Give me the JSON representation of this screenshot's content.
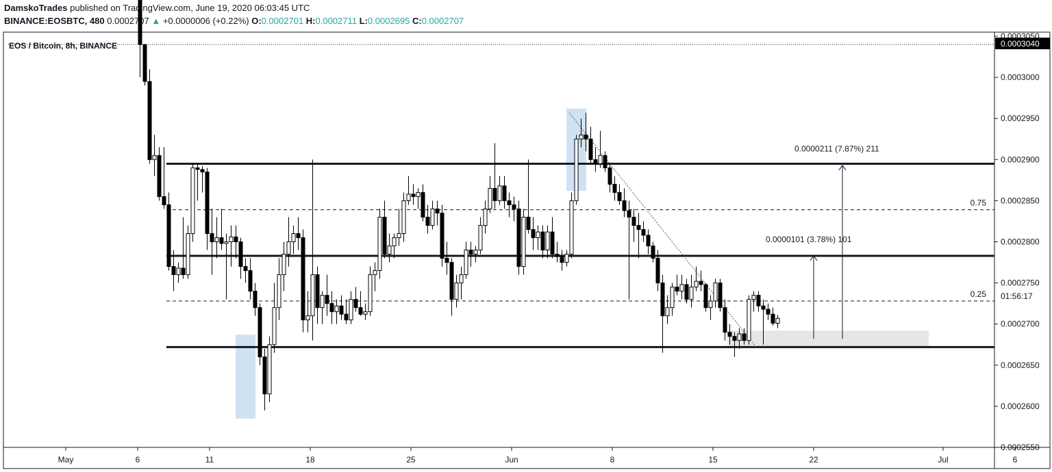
{
  "header": {
    "author": "DamskoTrades",
    "published_text": "published on TradingView.com, June 19, 2020 06:03:45 UTC",
    "symbol": "BINANCE:EOSBTC, 480",
    "last_price": "0.0002707",
    "change_arrow": "▲",
    "change": "+0.0000006 (+0.22%)",
    "o_label": "O:",
    "o_value": "0.0002701",
    "h_label": "H:",
    "h_value": "0.0002711",
    "l_label": "L:",
    "l_value": "0.0002695",
    "c_label": "C:",
    "c_value": "0.0002707"
  },
  "colors": {
    "bear": "#000000",
    "bull_fill": "#ffffff",
    "highlight": "#cfe2f3",
    "target_zone": "#e6e6e6",
    "price_label_bg": "#000000"
  },
  "chart_data": {
    "type": "candlestick",
    "title": "EOS / Bitcoin, 8h, BINANCE",
    "ylim": [
      0.000255,
      0.0003055
    ],
    "y_ticks": [
      "0.0002550",
      "0.0002600",
      "0.0002650",
      "0.0002700",
      "0.0002750",
      "0.0002800",
      "0.0002850",
      "0.0002900",
      "0.0002950",
      "0.0003000",
      "0.0003050"
    ],
    "x_ticks": [
      {
        "label": "May",
        "date": "2020-05-01"
      },
      {
        "label": "6",
        "date": "2020-05-06"
      },
      {
        "label": "11",
        "date": "2020-05-11"
      },
      {
        "label": "18",
        "date": "2020-05-18"
      },
      {
        "label": "25",
        "date": "2020-05-25"
      },
      {
        "label": "Jun",
        "date": "2020-06-01"
      },
      {
        "label": "8",
        "date": "2020-06-08"
      },
      {
        "label": "15",
        "date": "2020-06-15"
      },
      {
        "label": "22",
        "date": "2020-06-22"
      },
      {
        "label": "Jul",
        "date": "2020-07-01"
      },
      {
        "label": "6",
        "date": "2020-07-06"
      }
    ],
    "current_price_label": "0.0003040",
    "countdown_label": "01:56:17",
    "horizontal_lines": [
      {
        "price": 0.0002895,
        "style": "solid",
        "start": "2020-05-08"
      },
      {
        "price": 0.0002783,
        "style": "solid",
        "start": "2020-05-08"
      },
      {
        "price": 0.0002672,
        "style": "solid",
        "start": "2020-05-08"
      },
      {
        "price": 0.0002839,
        "style": "dashed",
        "label": "0.75",
        "start": "2020-05-08"
      },
      {
        "price": 0.0002728,
        "style": "dashed",
        "label": "0.25",
        "start": "2020-05-08"
      },
      {
        "price": 0.000304,
        "style": "dotted",
        "start": "2020-04-27"
      }
    ],
    "measures": [
      {
        "label": "0.0000101 (3.78%) 101",
        "date": "2020-06-22",
        "from": 0.0002682,
        "to": 0.0002783
      },
      {
        "label": "0.0000211 (7.87%) 211",
        "date": "2020-06-24",
        "from": 0.0002682,
        "to": 0.0002893
      }
    ],
    "target_zone": {
      "start": "2020-06-16",
      "end": "2020-06-30",
      "low": 0.0002672,
      "high": 0.0002692
    },
    "highlights": [
      {
        "start": "2020-05-13",
        "end": "2020-05-14",
        "low": 0.0002585,
        "high": 0.0002687
      },
      {
        "start": "2020-06-05",
        "end": "2020-06-06",
        "low": 0.0002862,
        "high": 0.0002962
      }
    ],
    "trendline": {
      "from": {
        "date": "2020-06-05",
        "price": 0.0002957
      },
      "to": {
        "date": "2020-06-18",
        "price": 0.0002672
      }
    },
    "candles": [
      [
        "2020-05-06 00:00",
        0.00031,
        0.000311,
        0.0003,
        0.000304
      ],
      [
        "2020-05-06 08:00",
        0.000304,
        0.000304,
        0.000299,
        0.0002995
      ],
      [
        "2020-05-06 16:00",
        0.0002995,
        0.000301,
        0.0002895,
        0.00029
      ],
      [
        "2020-05-07 00:00",
        0.00029,
        0.000293,
        0.000288,
        0.0002905
      ],
      [
        "2020-05-07 08:00",
        0.0002905,
        0.0002915,
        0.000285,
        0.0002855
      ],
      [
        "2020-05-07 16:00",
        0.0002855,
        0.0002915,
        0.000284,
        0.0002845
      ],
      [
        "2020-05-08 00:00",
        0.0002845,
        0.000286,
        0.0002765,
        0.000277
      ],
      [
        "2020-05-08 08:00",
        0.000277,
        0.000279,
        0.000274,
        0.000276
      ],
      [
        "2020-05-08 16:00",
        0.000276,
        0.0002775,
        0.000275,
        0.0002768
      ],
      [
        "2020-05-09 00:00",
        0.0002768,
        0.000283,
        0.0002755,
        0.000276
      ],
      [
        "2020-05-09 08:00",
        0.000276,
        0.000282,
        0.0002755,
        0.000281
      ],
      [
        "2020-05-09 16:00",
        0.000281,
        0.0002895,
        0.00028,
        0.000289
      ],
      [
        "2020-05-10 00:00",
        0.000289,
        0.0002895,
        0.000285,
        0.0002888
      ],
      [
        "2020-05-10 08:00",
        0.0002888,
        0.0002892,
        0.000286,
        0.0002885
      ],
      [
        "2020-05-10 16:00",
        0.0002885,
        0.000289,
        0.000279,
        0.000281
      ],
      [
        "2020-05-11 00:00",
        0.000281,
        0.000284,
        0.000276,
        0.00028
      ],
      [
        "2020-05-11 08:00",
        0.00028,
        0.000283,
        0.000278,
        0.0002805
      ],
      [
        "2020-05-11 16:00",
        0.0002805,
        0.000284,
        0.000279,
        0.0002798
      ],
      [
        "2020-05-12 00:00",
        0.0002798,
        0.000281,
        0.000273,
        0.00028
      ],
      [
        "2020-05-12 08:00",
        0.00028,
        0.000282,
        0.000277,
        0.0002806
      ],
      [
        "2020-05-12 16:00",
        0.0002806,
        0.000282,
        0.000278,
        0.00028
      ],
      [
        "2020-05-13 00:00",
        0.00028,
        0.0002805,
        0.0002755,
        0.000277
      ],
      [
        "2020-05-13 08:00",
        0.000277,
        0.000278,
        0.000275,
        0.0002765
      ],
      [
        "2020-05-13 16:00",
        0.0002765,
        0.000278,
        0.000273,
        0.000274
      ],
      [
        "2020-05-14 00:00",
        0.000274,
        0.000275,
        0.000271,
        0.000272
      ],
      [
        "2020-05-14 08:00",
        0.000272,
        0.0002725,
        0.000265,
        0.000266
      ],
      [
        "2020-05-14 16:00",
        0.000266,
        0.000267,
        0.0002595,
        0.0002615
      ],
      [
        "2020-05-15 00:00",
        0.0002615,
        0.0002685,
        0.0002605,
        0.0002675
      ],
      [
        "2020-05-15 08:00",
        0.0002675,
        0.000275,
        0.0002665,
        0.000272
      ],
      [
        "2020-05-15 16:00",
        0.000272,
        0.000278,
        0.0002705,
        0.000276
      ],
      [
        "2020-05-16 00:00",
        0.000276,
        0.00028,
        0.000274,
        0.0002785
      ],
      [
        "2020-05-16 08:00",
        0.0002785,
        0.000283,
        0.000277,
        0.00028
      ],
      [
        "2020-05-16 16:00",
        0.00028,
        0.000282,
        0.0002785,
        0.000281
      ],
      [
        "2020-05-17 00:00",
        0.000281,
        0.000283,
        0.000279,
        0.0002805
      ],
      [
        "2020-05-17 08:00",
        0.0002805,
        0.0002815,
        0.000269,
        0.0002705
      ],
      [
        "2020-05-17 16:00",
        0.0002705,
        0.000274,
        0.000269,
        0.000271
      ],
      [
        "2020-05-18 00:00",
        0.000271,
        0.00029,
        0.000268,
        0.000276
      ],
      [
        "2020-05-18 08:00",
        0.000276,
        0.000277,
        0.00027,
        0.000272
      ],
      [
        "2020-05-18 16:00",
        0.000272,
        0.000274,
        0.00027,
        0.0002735
      ],
      [
        "2020-05-19 00:00",
        0.0002735,
        0.000276,
        0.000271,
        0.0002725
      ],
      [
        "2020-05-19 08:00",
        0.0002725,
        0.000274,
        0.00027,
        0.0002715
      ],
      [
        "2020-05-19 16:00",
        0.0002715,
        0.000273,
        0.00027,
        0.0002722
      ],
      [
        "2020-05-20 00:00",
        0.0002722,
        0.0002735,
        0.0002705,
        0.0002712
      ],
      [
        "2020-05-20 08:00",
        0.0002712,
        0.000273,
        0.00027,
        0.0002705
      ],
      [
        "2020-05-20 16:00",
        0.0002705,
        0.000274,
        0.00027,
        0.000273
      ],
      [
        "2020-05-21 00:00",
        0.000273,
        0.0002745,
        0.0002715,
        0.000272
      ],
      [
        "2020-05-21 08:00",
        0.000272,
        0.000274,
        0.000271,
        0.0002712
      ],
      [
        "2020-05-21 16:00",
        0.0002712,
        0.0002725,
        0.0002705,
        0.0002715
      ],
      [
        "2020-05-22 00:00",
        0.0002715,
        0.000277,
        0.000271,
        0.000276
      ],
      [
        "2020-05-22 08:00",
        0.000276,
        0.0002775,
        0.000274,
        0.0002765
      ],
      [
        "2020-05-22 16:00",
        0.0002765,
        0.000284,
        0.0002755,
        0.000283
      ],
      [
        "2020-05-23 00:00",
        0.000283,
        0.000285,
        0.000278,
        0.0002785
      ],
      [
        "2020-05-23 08:00",
        0.0002785,
        0.000281,
        0.0002775,
        0.0002795
      ],
      [
        "2020-05-23 16:00",
        0.0002795,
        0.000281,
        0.000278,
        0.0002805
      ],
      [
        "2020-05-24 00:00",
        0.0002805,
        0.000284,
        0.0002795,
        0.000281
      ],
      [
        "2020-05-24 08:00",
        0.000281,
        0.000286,
        0.00028,
        0.000285
      ],
      [
        "2020-05-24 16:00",
        0.000285,
        0.000288,
        0.0002845,
        0.0002858
      ],
      [
        "2020-05-25 00:00",
        0.0002858,
        0.000287,
        0.0002845,
        0.0002855
      ],
      [
        "2020-05-25 08:00",
        0.0002855,
        0.0002865,
        0.000284,
        0.000286
      ],
      [
        "2020-05-25 16:00",
        0.000286,
        0.000287,
        0.0002825,
        0.000283
      ],
      [
        "2020-05-26 00:00",
        0.000283,
        0.0002845,
        0.000281,
        0.000282
      ],
      [
        "2020-05-26 08:00",
        0.000282,
        0.000285,
        0.0002815,
        0.000284
      ],
      [
        "2020-05-26 16:00",
        0.000284,
        0.000285,
        0.000282,
        0.0002835
      ],
      [
        "2020-05-27 00:00",
        0.0002835,
        0.0002845,
        0.000277,
        0.000278
      ],
      [
        "2020-05-27 08:00",
        0.000278,
        0.00028,
        0.000276,
        0.0002775
      ],
      [
        "2020-05-27 16:00",
        0.0002775,
        0.000278,
        0.000271,
        0.000273
      ],
      [
        "2020-05-28 00:00",
        0.000273,
        0.000276,
        0.000272,
        0.000275
      ],
      [
        "2020-05-28 08:00",
        0.000275,
        0.000277,
        0.000273,
        0.000276
      ],
      [
        "2020-05-28 16:00",
        0.000276,
        0.00028,
        0.0002755,
        0.000279
      ],
      [
        "2020-05-29 00:00",
        0.000279,
        0.00028,
        0.000277,
        0.0002785
      ],
      [
        "2020-05-29 08:00",
        0.0002785,
        0.0002795,
        0.0002775,
        0.000279
      ],
      [
        "2020-05-29 16:00",
        0.000279,
        0.000283,
        0.0002785,
        0.000282
      ],
      [
        "2020-05-30 00:00",
        0.000282,
        0.000285,
        0.000281,
        0.000284
      ],
      [
        "2020-05-30 08:00",
        0.000284,
        0.000288,
        0.0002835,
        0.0002865
      ],
      [
        "2020-05-30 16:00",
        0.0002865,
        0.000292,
        0.000284,
        0.000285
      ],
      [
        "2020-05-31 00:00",
        0.000285,
        0.000288,
        0.0002845,
        0.0002868
      ],
      [
        "2020-05-31 08:00",
        0.0002868,
        0.000288,
        0.000284,
        0.000285
      ],
      [
        "2020-05-31 16:00",
        0.000285,
        0.000286,
        0.000283,
        0.0002845
      ],
      [
        "2020-06-01 00:00",
        0.0002845,
        0.0002855,
        0.0002825,
        0.000284
      ],
      [
        "2020-06-01 08:00",
        0.000284,
        0.000285,
        0.000276,
        0.000277
      ],
      [
        "2020-06-01 16:00",
        0.000277,
        0.000284,
        0.000276,
        0.000283
      ],
      [
        "2020-06-02 00:00",
        0.000283,
        0.00029,
        0.000281,
        0.0002815
      ],
      [
        "2020-06-02 08:00",
        0.0002815,
        0.000283,
        0.000279,
        0.0002805
      ],
      [
        "2020-06-02 16:00",
        0.0002805,
        0.000282,
        0.000279,
        0.0002812
      ],
      [
        "2020-06-03 00:00",
        0.0002812,
        0.000282,
        0.000278,
        0.000279
      ],
      [
        "2020-06-03 08:00",
        0.000279,
        0.000282,
        0.000278,
        0.0002812
      ],
      [
        "2020-06-03 16:00",
        0.0002812,
        0.000283,
        0.000278,
        0.0002785
      ],
      [
        "2020-06-04 00:00",
        0.0002785,
        0.00028,
        0.0002775,
        0.0002782
      ],
      [
        "2020-06-04 08:00",
        0.0002782,
        0.000279,
        0.0002765,
        0.0002775
      ],
      [
        "2020-06-04 16:00",
        0.0002775,
        0.000279,
        0.000277,
        0.0002785
      ],
      [
        "2020-06-05 00:00",
        0.0002785,
        0.000286,
        0.000278,
        0.000285
      ],
      [
        "2020-06-05 08:00",
        0.000285,
        0.000293,
        0.0002845,
        0.0002925
      ],
      [
        "2020-06-05 16:00",
        0.0002925,
        0.000295,
        0.0002915,
        0.000293
      ],
      [
        "2020-06-06 00:00",
        0.000293,
        0.0002957,
        0.000291,
        0.0002925
      ],
      [
        "2020-06-06 08:00",
        0.0002925,
        0.000294,
        0.0002895,
        0.00029
      ],
      [
        "2020-06-06 16:00",
        0.00029,
        0.0002915,
        0.0002885,
        0.0002895
      ],
      [
        "2020-06-07 00:00",
        0.0002895,
        0.0002935,
        0.000289,
        0.0002905
      ],
      [
        "2020-06-07 08:00",
        0.0002905,
        0.000291,
        0.0002885,
        0.000289
      ],
      [
        "2020-06-07 16:00",
        0.000289,
        0.0002895,
        0.000286,
        0.000287
      ],
      [
        "2020-06-08 00:00",
        0.000287,
        0.000288,
        0.000285,
        0.000286
      ],
      [
        "2020-06-08 08:00",
        0.000286,
        0.000287,
        0.0002845,
        0.000285
      ],
      [
        "2020-06-08 16:00",
        0.000285,
        0.0002865,
        0.000283,
        0.0002838
      ],
      [
        "2020-06-09 00:00",
        0.0002838,
        0.000285,
        0.000273,
        0.000283
      ],
      [
        "2020-06-09 08:00",
        0.000283,
        0.000284,
        0.00028,
        0.000282
      ],
      [
        "2020-06-09 16:00",
        0.000282,
        0.0002835,
        0.000278,
        0.0002815
      ],
      [
        "2020-06-10 00:00",
        0.0002815,
        0.0002825,
        0.00028,
        0.0002808
      ],
      [
        "2020-06-10 08:00",
        0.0002808,
        0.0002815,
        0.0002785,
        0.0002795
      ],
      [
        "2020-06-10 16:00",
        0.0002795,
        0.00028,
        0.0002775,
        0.000278
      ],
      [
        "2020-06-11 00:00",
        0.000278,
        0.000279,
        0.000274,
        0.000275
      ],
      [
        "2020-06-11 08:00",
        0.000275,
        0.000276,
        0.0002665,
        0.000271
      ],
      [
        "2020-06-11 16:00",
        0.000271,
        0.0002735,
        0.00027,
        0.000272
      ],
      [
        "2020-06-12 00:00",
        0.000272,
        0.000275,
        0.000271,
        0.0002745
      ],
      [
        "2020-06-12 08:00",
        0.0002745,
        0.000276,
        0.0002735,
        0.000274
      ],
      [
        "2020-06-12 16:00",
        0.000274,
        0.000276,
        0.000273,
        0.0002748
      ],
      [
        "2020-06-13 00:00",
        0.0002748,
        0.0002755,
        0.0002725,
        0.000273
      ],
      [
        "2020-06-13 08:00",
        0.000273,
        0.000276,
        0.000272,
        0.0002745
      ],
      [
        "2020-06-13 16:00",
        0.0002745,
        0.000277,
        0.000274,
        0.0002752
      ],
      [
        "2020-06-14 00:00",
        0.0002752,
        0.0002765,
        0.000274,
        0.0002748
      ],
      [
        "2020-06-14 08:00",
        0.0002748,
        0.000275,
        0.0002715,
        0.000272
      ],
      [
        "2020-06-14 16:00",
        0.000272,
        0.0002735,
        0.0002705,
        0.0002728
      ],
      [
        "2020-06-15 00:00",
        0.0002728,
        0.0002755,
        0.000272,
        0.000275
      ],
      [
        "2020-06-15 08:00",
        0.000275,
        0.0002755,
        0.0002715,
        0.000272
      ],
      [
        "2020-06-15 16:00",
        0.000272,
        0.000273,
        0.000268,
        0.000269
      ],
      [
        "2020-06-16 00:00",
        0.000269,
        0.00027,
        0.0002675,
        0.0002685
      ],
      [
        "2020-06-16 08:00",
        0.0002685,
        0.000269,
        0.000266,
        0.000268
      ],
      [
        "2020-06-16 16:00",
        0.000268,
        0.0002695,
        0.000267,
        0.0002688
      ],
      [
        "2020-06-17 00:00",
        0.0002688,
        0.0002695,
        0.0002675,
        0.000268
      ],
      [
        "2020-06-17 08:00",
        0.000268,
        0.0002735,
        0.0002675,
        0.000273
      ],
      [
        "2020-06-17 16:00",
        0.000273,
        0.000274,
        0.0002715,
        0.0002735
      ],
      [
        "2020-06-18 00:00",
        0.0002735,
        0.000274,
        0.0002715,
        0.0002722
      ],
      [
        "2020-06-18 08:00",
        0.0002722,
        0.000273,
        0.0002675,
        0.0002718
      ],
      [
        "2020-06-18 16:00",
        0.0002718,
        0.0002725,
        0.0002705,
        0.0002712
      ],
      [
        "2020-06-19 00:00",
        0.0002712,
        0.000272,
        0.0002698,
        0.0002701
      ],
      [
        "2020-06-19 08:00",
        0.0002701,
        0.0002711,
        0.0002695,
        0.0002707
      ]
    ]
  }
}
